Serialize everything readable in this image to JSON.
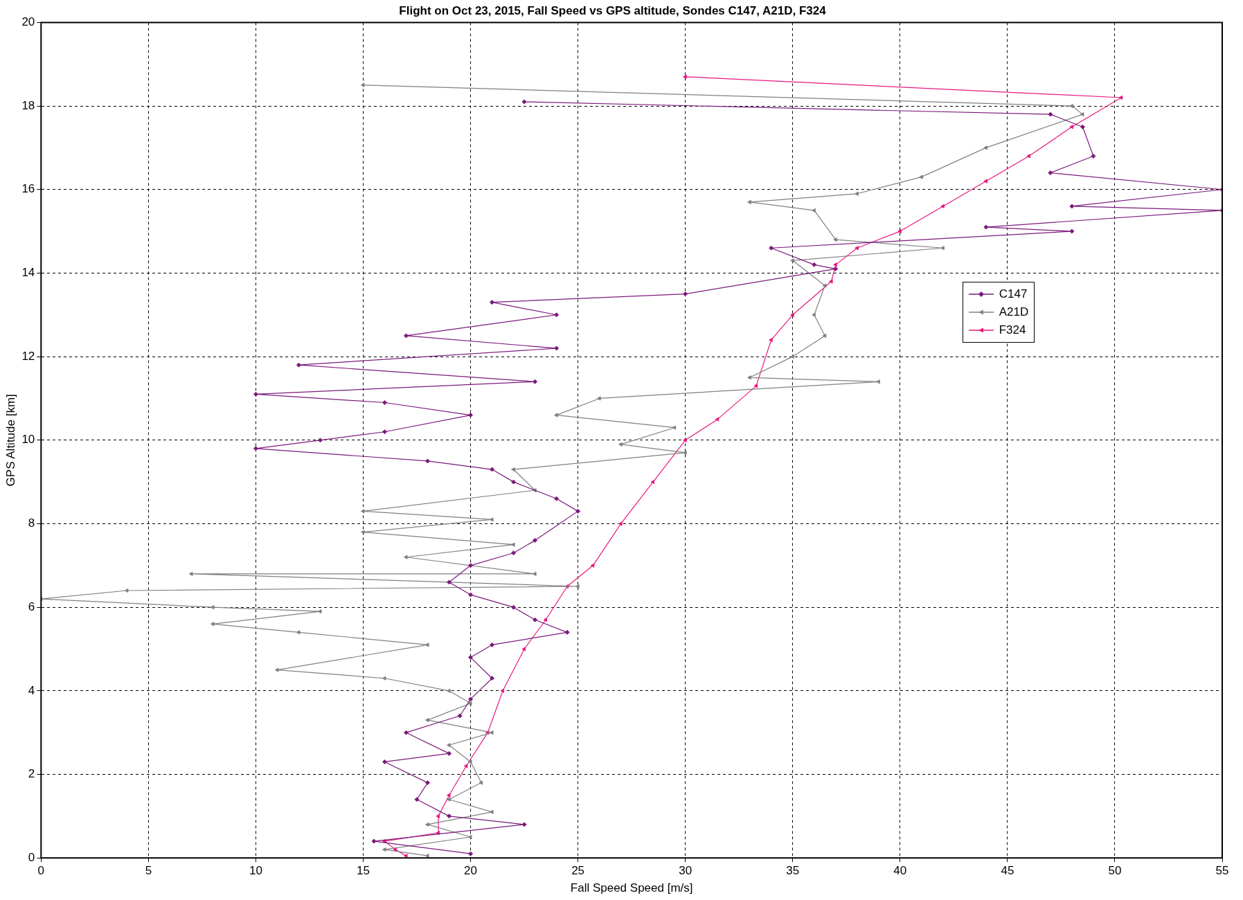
{
  "chart_data": {
    "type": "line",
    "title": "Flight on Oct 23, 2015, Fall Speed vs GPS altitude, Sondes C147, A21D, F324",
    "xlabel": "Fall Speed Speed [m/s]",
    "ylabel": "GPS Altitude [km]",
    "xlim": [
      0,
      55
    ],
    "xticks": [
      0,
      5,
      10,
      15,
      20,
      25,
      30,
      35,
      40,
      45,
      50,
      55
    ],
    "ylim": [
      0,
      20
    ],
    "yticks": [
      0,
      2,
      4,
      6,
      8,
      10,
      12,
      14,
      16,
      18,
      20
    ],
    "grid": true,
    "legend": "right",
    "line_style": "solid",
    "series": [
      {
        "name": "C147",
        "color": "#7b1a7b",
        "marker": "diamond",
        "x": [
          22.5,
          47,
          48.5,
          49,
          47,
          55,
          48,
          55,
          44,
          48,
          34,
          36,
          37,
          30,
          21,
          24,
          17,
          24,
          12,
          23,
          10,
          16,
          20,
          16,
          13,
          10,
          18,
          21,
          22,
          24,
          25,
          23,
          22,
          20,
          19,
          20,
          22,
          23,
          24.5,
          21,
          20,
          21,
          20,
          19.5,
          17,
          19,
          16,
          18,
          17.5,
          19,
          22.5,
          15.5,
          20
        ],
        "values": [
          18.1,
          17.8,
          17.5,
          16.8,
          16.4,
          16.0,
          15.6,
          15.5,
          15.1,
          15.0,
          14.6,
          14.2,
          14.1,
          13.5,
          13.3,
          13.0,
          12.5,
          12.2,
          11.8,
          11.4,
          11.1,
          10.9,
          10.6,
          10.2,
          10.0,
          9.8,
          9.5,
          9.3,
          9.0,
          8.6,
          8.3,
          7.6,
          7.3,
          7.0,
          6.6,
          6.3,
          6.0,
          5.7,
          5.4,
          5.1,
          4.8,
          4.3,
          3.8,
          3.4,
          3.0,
          2.5,
          2.3,
          1.8,
          1.4,
          1.0,
          0.8,
          0.4,
          0.1
        ]
      },
      {
        "name": "A21D",
        "color": "#808080",
        "marker": "triangle",
        "x": [
          15,
          48,
          48.5,
          44,
          41,
          38,
          33,
          36,
          37,
          42,
          35,
          36.5,
          36,
          36.5,
          35,
          33,
          39,
          26,
          24,
          29.5,
          27,
          30,
          22,
          23,
          15,
          21,
          15,
          22,
          17,
          23,
          7,
          25,
          4,
          0,
          8,
          13,
          8,
          12,
          18,
          11,
          16,
          19,
          20,
          18,
          21,
          19,
          20,
          20.5,
          19,
          21,
          18,
          20,
          16,
          18
        ],
        "values": [
          18.5,
          18.0,
          17.8,
          17.0,
          16.3,
          15.9,
          15.7,
          15.5,
          14.8,
          14.6,
          14.3,
          13.7,
          13.0,
          12.5,
          12.0,
          11.5,
          11.4,
          11.0,
          10.6,
          10.3,
          9.9,
          9.7,
          9.3,
          8.8,
          8.3,
          8.1,
          7.8,
          7.5,
          7.2,
          6.8,
          6.8,
          6.5,
          6.4,
          6.2,
          6.0,
          5.9,
          5.6,
          5.4,
          5.1,
          4.5,
          4.3,
          4.0,
          3.7,
          3.3,
          3.0,
          2.7,
          2.3,
          1.8,
          1.4,
          1.1,
          0.8,
          0.5,
          0.2,
          0.05
        ]
      },
      {
        "name": "F324",
        "color": "#e8177f",
        "marker": "triangle",
        "x": [
          30,
          50.3,
          48,
          46,
          44,
          42,
          40,
          38,
          37,
          36.8,
          35,
          34,
          33.3,
          31.5,
          30,
          28.5,
          27,
          25.7,
          24.5,
          23.5,
          22.5,
          21.5,
          20.8,
          19.8,
          19,
          18.5,
          18.5,
          16,
          16.5,
          17
        ],
        "values": [
          18.7,
          18.2,
          17.5,
          16.8,
          16.2,
          15.6,
          15.0,
          14.6,
          14.2,
          13.8,
          13.0,
          12.4,
          11.3,
          10.5,
          10.0,
          9.0,
          8.0,
          7.0,
          6.5,
          5.7,
          5.0,
          4.0,
          3.0,
          2.2,
          1.5,
          1.0,
          0.6,
          0.4,
          0.2,
          0.05
        ]
      }
    ]
  }
}
